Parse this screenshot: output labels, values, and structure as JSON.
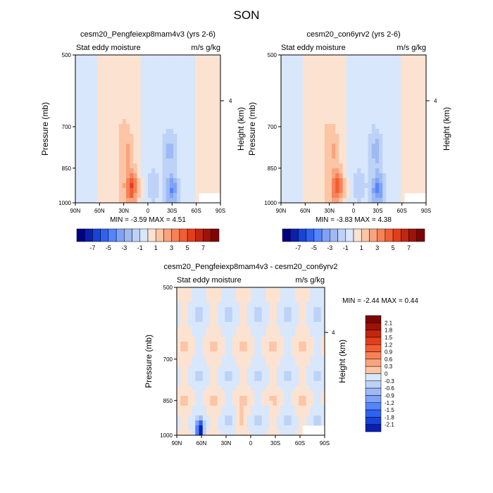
{
  "figure": {
    "title": "SON",
    "colors": {
      "neg": [
        "#000080",
        "#0a1fb0",
        "#1843d8",
        "#2f62f2",
        "#5484ff",
        "#7ea2f7",
        "#9dbaf4",
        "#bdd2f6",
        "#d8e7fb"
      ],
      "pos": [
        "#fce3d1",
        "#fcc5a6",
        "#f9a47f",
        "#f78257",
        "#f45d33",
        "#e33e1b",
        "#c22610",
        "#9e1208",
        "#7c0606"
      ]
    }
  },
  "chart_data": [
    {
      "type": "heatmap",
      "title": "cesm20_Pengfeiexp8mam4v3 (yrs 2-6)",
      "left_label": "Stat eddy moisture",
      "right_label": "m/s g/kg",
      "ylabel": "Pressure (mb)",
      "ylabel_right": "Height (km)",
      "x_ticks": [
        "90N",
        "60N",
        "30N",
        "0",
        "30S",
        "60S",
        "90S"
      ],
      "x_range": [
        90,
        -90
      ],
      "y_ticks": [
        "500",
        "700",
        "850",
        "1000"
      ],
      "y_ticks_right": [
        "4"
      ],
      "y_range": [
        500,
        1000
      ],
      "y_scale": "log",
      "min": -3.59,
      "max": 4.51,
      "stats_text": "MIN =  -3.59  MAX =   4.51",
      "colorbar": {
        "orientation": "horizontal",
        "labels": [
          "-7",
          "-5",
          "-3",
          "-1",
          "1",
          "3",
          "5",
          "7"
        ]
      },
      "features": [
        {
          "lat": 20,
          "p": 930,
          "v": 4.51
        },
        {
          "lat": 25,
          "p": 780,
          "v": 1.5
        },
        {
          "lat": -30,
          "p": 940,
          "v": -3.59
        },
        {
          "lat": -28,
          "p": 780,
          "v": -1.8
        },
        {
          "lat": -5,
          "p": 920,
          "v": -1.2
        }
      ]
    },
    {
      "type": "heatmap",
      "title": "cesm20_con6yrv2 (yrs 2-6)",
      "left_label": "Stat eddy moisture",
      "right_label": "m/s g/kg",
      "ylabel": "Pressure (mb)",
      "ylabel_right": "Height (km)",
      "x_ticks": [
        "90N",
        "60N",
        "30N",
        "0",
        "30S",
        "60S",
        "90S"
      ],
      "x_range": [
        90,
        -90
      ],
      "y_ticks": [
        "500",
        "700",
        "850",
        "1000"
      ],
      "y_ticks_right": [
        "4"
      ],
      "y_range": [
        500,
        1000
      ],
      "y_scale": "log",
      "min": -3.83,
      "max": 4.38,
      "stats_text": "MIN =  -3.83  MAX =   4.38",
      "colorbar": {
        "orientation": "horizontal",
        "labels": [
          "-7",
          "-5",
          "-3",
          "-1",
          "1",
          "3",
          "5",
          "7"
        ]
      },
      "features": [
        {
          "lat": 20,
          "p": 930,
          "v": 4.38
        },
        {
          "lat": 25,
          "p": 780,
          "v": 1.4
        },
        {
          "lat": -30,
          "p": 940,
          "v": -3.83
        },
        {
          "lat": -28,
          "p": 780,
          "v": -1.9
        },
        {
          "lat": -5,
          "p": 920,
          "v": -1.2
        }
      ]
    },
    {
      "type": "heatmap",
      "title": "cesm20_Pengfeiexp8mam4v3 - cesm20_con6yrv2",
      "left_label": "Stat eddy moisture",
      "right_label": "m/s g/kg",
      "ylabel": "Pressure (mb)",
      "ylabel_right": "Height (km)",
      "x_ticks": [
        "90N",
        "60N",
        "30N",
        "0",
        "30S",
        "60S",
        "90S"
      ],
      "x_range": [
        90,
        -90
      ],
      "y_ticks": [
        "500",
        "700",
        "850",
        "1000"
      ],
      "y_ticks_right": [
        "4"
      ],
      "y_range": [
        500,
        1000
      ],
      "y_scale": "log",
      "min": -2.44,
      "max": 0.44,
      "stats_text": "MIN =  -2.44  MAX =   0.44",
      "colorbar": {
        "orientation": "vertical",
        "labels": [
          "2.1",
          "1.8",
          "1.5",
          "1.2",
          "0.9",
          "0.6",
          "0.3",
          "0",
          "-0.3",
          "-0.6",
          "-0.9",
          "-1.2",
          "-1.5",
          "-1.8",
          "-2.1"
        ]
      },
      "features": [
        {
          "lat": 62,
          "p": 975,
          "v": -2.44
        },
        {
          "lat": 12,
          "p": 930,
          "v": 0.44
        },
        {
          "lat": -20,
          "p": 900,
          "v": -0.3
        }
      ]
    }
  ]
}
